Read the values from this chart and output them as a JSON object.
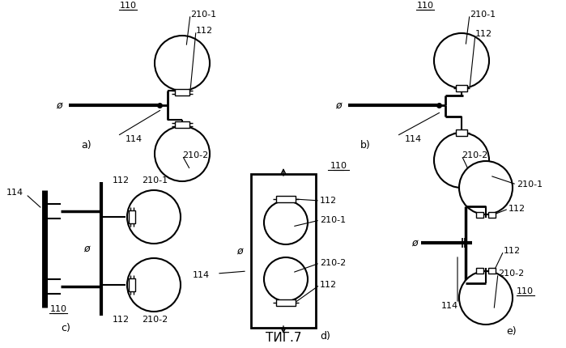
{
  "title": "ΤИГ.7",
  "bg_color": "#ffffff",
  "diagrams": {
    "a_label": "a)",
    "b_label": "b)",
    "c_label": "c)",
    "d_label": "d)",
    "e_label": "e)"
  }
}
